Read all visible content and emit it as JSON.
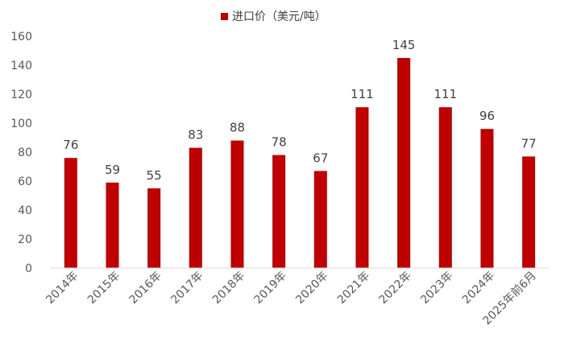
{
  "chart_data": {
    "type": "bar",
    "legend": {
      "label": "进口价（美元/吨）",
      "position": "top-center"
    },
    "categories": [
      "2014年",
      "2015年",
      "2016年",
      "2017年",
      "2018年",
      "2019年",
      "2020年",
      "2021年",
      "2022年",
      "2023年",
      "2024年",
      "2025年前6月"
    ],
    "series": [
      {
        "name": "进口价（美元/吨）",
        "values": [
          76,
          59,
          55,
          83,
          88,
          78,
          67,
          111,
          145,
          111,
          96,
          77
        ],
        "color": "#C00000"
      }
    ],
    "ylim": [
      0,
      160
    ],
    "yticks": [
      0,
      20,
      40,
      60,
      80,
      100,
      120,
      140,
      160
    ],
    "grid": false,
    "data_labels": true
  }
}
